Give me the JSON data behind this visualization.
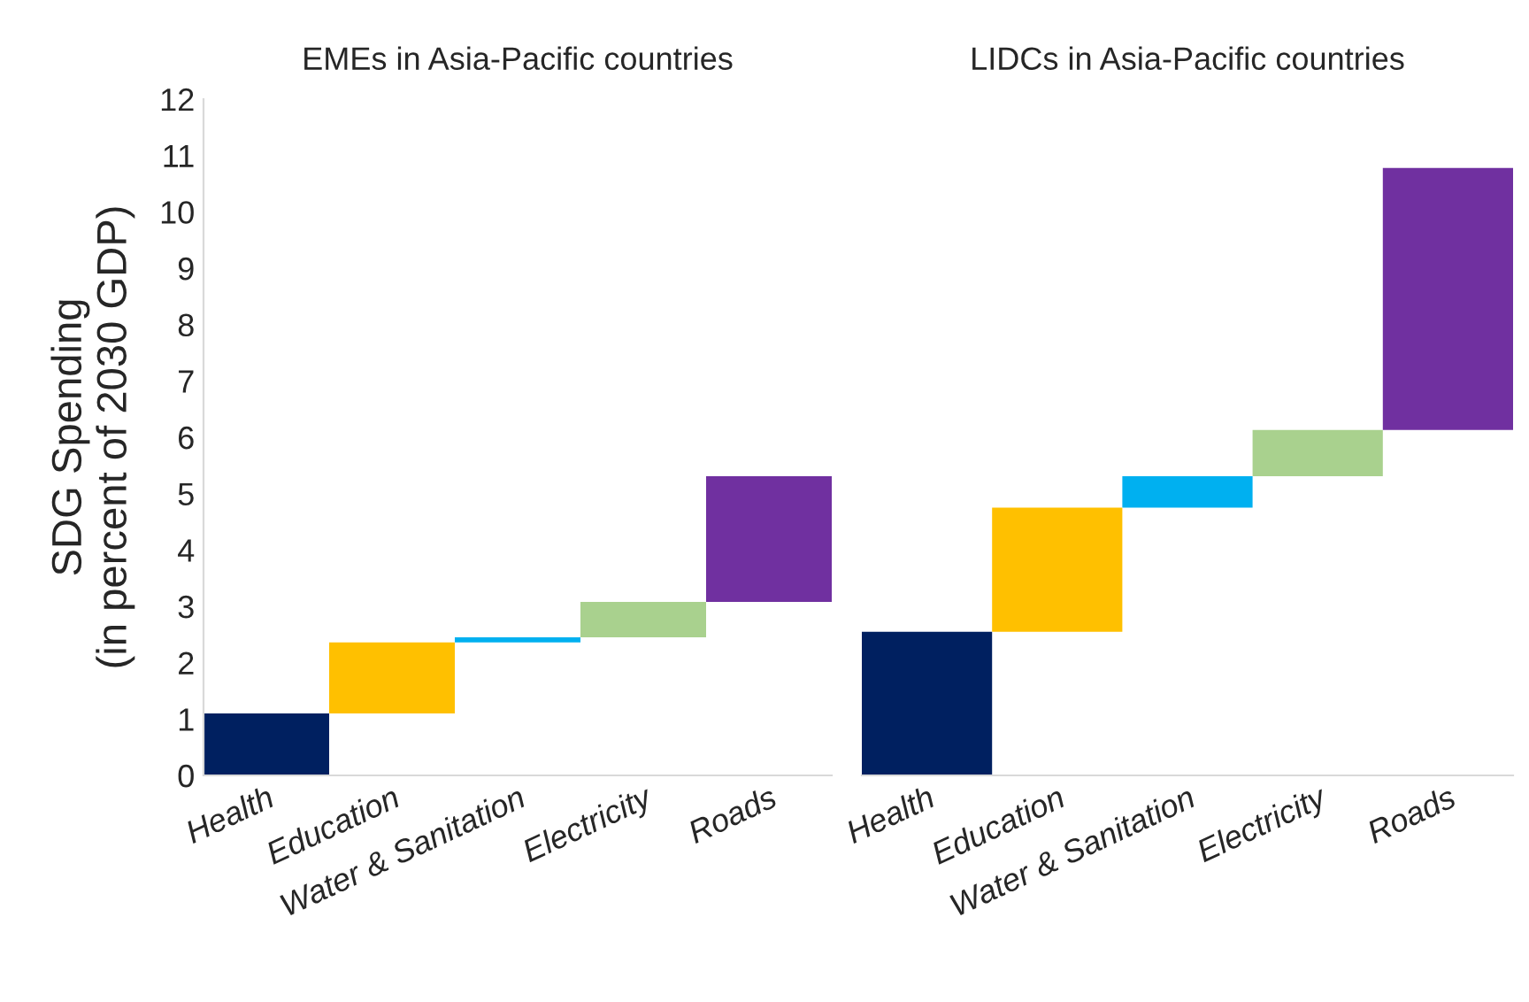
{
  "chart_data": [
    {
      "type": "bar",
      "title": "EMEs in Asia-Pacific countries",
      "ylabel": "SDG Spending\n(in percent of 2030 GDP)",
      "categories": [
        "Health",
        "Education",
        "Water & Sanitation",
        "Electricity",
        "Roads"
      ],
      "values": [
        1.1,
        1.26,
        0.09,
        0.63,
        2.23
      ],
      "base": [
        0,
        1.1,
        2.36,
        2.45,
        3.08
      ],
      "colors": [
        "#002060",
        "#ffc000",
        "#00b0f0",
        "#a9d18e",
        "#7030a0"
      ],
      "ylim": [
        0,
        12
      ],
      "yticks": [
        0,
        1,
        2,
        3,
        4,
        5,
        6,
        7,
        8,
        9,
        10,
        11,
        12
      ],
      "grid": false
    },
    {
      "type": "bar",
      "title": "LIDCs in Asia-Pacific countries",
      "categories": [
        "Health",
        "Education",
        "Water & Sanitation",
        "Electricity",
        "Roads"
      ],
      "values": [
        2.55,
        2.2,
        0.56,
        0.82,
        4.65
      ],
      "base": [
        0,
        2.55,
        4.75,
        5.31,
        6.13
      ],
      "colors": [
        "#002060",
        "#ffc000",
        "#00b0f0",
        "#a9d18e",
        "#7030a0"
      ],
      "ylim": [
        0,
        12
      ],
      "yticks": [
        0,
        1,
        2,
        3,
        4,
        5,
        6,
        7,
        8,
        9,
        10,
        11,
        12
      ],
      "tick_labels": "x",
      "grid": false
    }
  ]
}
